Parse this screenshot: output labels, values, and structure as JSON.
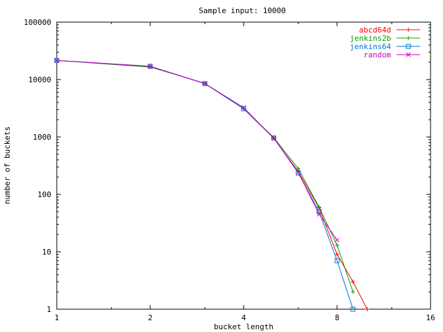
{
  "chart_data": {
    "type": "line",
    "title": "Sample input: 10000",
    "xlabel": "bucket length",
    "ylabel": "number of buckets",
    "x_scale": "log2",
    "y_scale": "log10",
    "xlim": [
      1,
      16
    ],
    "ylim": [
      1,
      100000
    ],
    "x_ticks": [
      {
        "value": 1,
        "label": "1"
      },
      {
        "value": 2,
        "label": "2"
      },
      {
        "value": 4,
        "label": "4"
      },
      {
        "value": 8,
        "label": "8"
      },
      {
        "value": 16,
        "label": "16"
      }
    ],
    "y_ticks": [
      {
        "value": 1,
        "label": "1"
      },
      {
        "value": 10,
        "label": "10"
      },
      {
        "value": 100,
        "label": "100"
      },
      {
        "value": 1000,
        "label": "1000"
      },
      {
        "value": 10000,
        "label": "10000"
      },
      {
        "value": 100000,
        "label": "100000"
      }
    ],
    "grid": false,
    "legend_position": "top-right",
    "series": [
      {
        "name": "abcd64d",
        "color": "#ff0000",
        "marker": "plus",
        "points": [
          [
            1,
            21500
          ],
          [
            2,
            17000
          ],
          [
            3,
            8500
          ],
          [
            4,
            3100
          ],
          [
            5,
            950
          ],
          [
            6,
            250
          ],
          [
            7,
            58
          ],
          [
            8,
            9
          ],
          [
            9,
            3
          ],
          [
            10,
            1
          ]
        ]
      },
      {
        "name": "jenkins2b",
        "color": "#00a000",
        "marker": "plus",
        "points": [
          [
            1,
            21500
          ],
          [
            2,
            16500
          ],
          [
            3,
            8600
          ],
          [
            4,
            3100
          ],
          [
            5,
            980
          ],
          [
            6,
            280
          ],
          [
            7,
            60
          ],
          [
            8,
            13
          ],
          [
            9,
            2
          ]
        ]
      },
      {
        "name": "jenkins64",
        "color": "#0070d0",
        "marker": "square",
        "points": [
          [
            1,
            21500
          ],
          [
            2,
            17000
          ],
          [
            3,
            8500
          ],
          [
            4,
            3100
          ],
          [
            5,
            960
          ],
          [
            6,
            235
          ],
          [
            7,
            50
          ],
          [
            8,
            7
          ],
          [
            9,
            1
          ]
        ]
      },
      {
        "name": "random",
        "color": "#c000c0",
        "marker": "cross",
        "points": [
          [
            1,
            21500
          ],
          [
            2,
            17000
          ],
          [
            3,
            8500
          ],
          [
            4,
            3250
          ],
          [
            5,
            950
          ],
          [
            6,
            240
          ],
          [
            7,
            45
          ],
          [
            8,
            16
          ]
        ]
      }
    ]
  }
}
